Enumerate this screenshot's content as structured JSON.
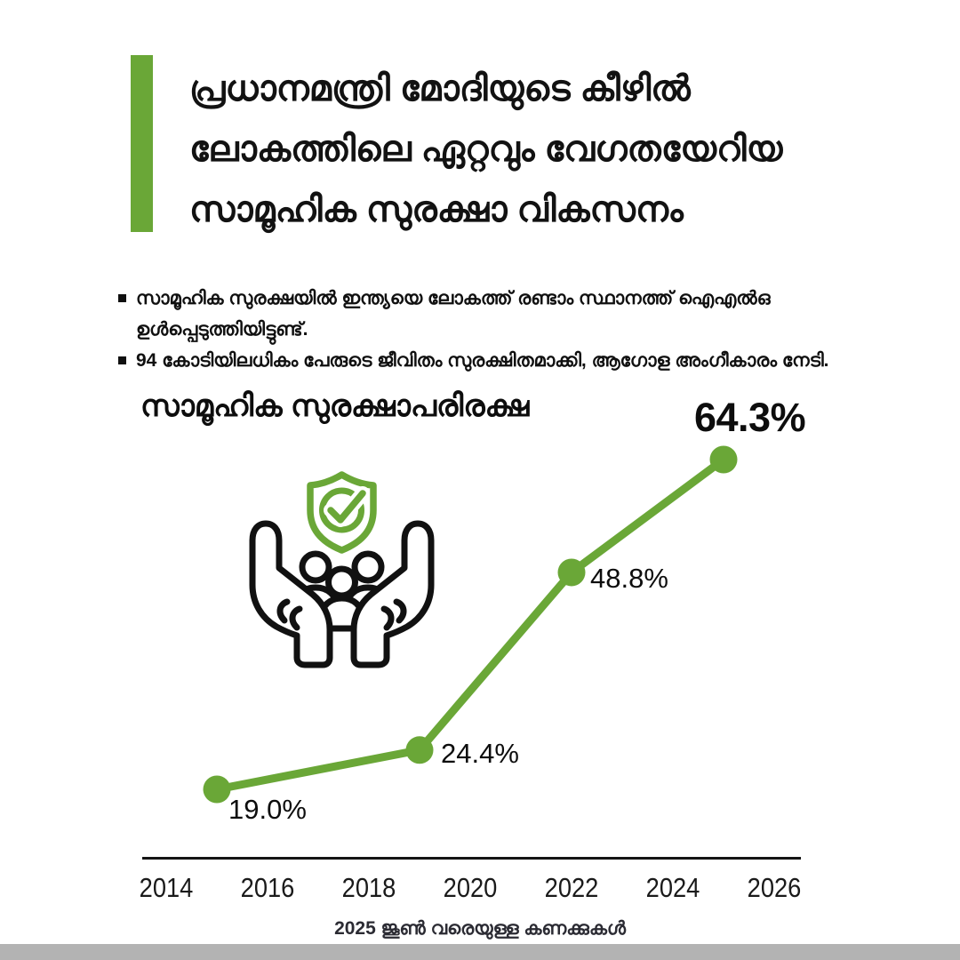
{
  "page": {
    "bg": "#ffffff",
    "accent": "#6aa737",
    "ink": "#111111",
    "bottom_bar_color": "#b3b3b3"
  },
  "header": {
    "title_lines": [
      "പ്രധാനമന്ത്രി മോദിയുടെ കീഴിൽ",
      "ലോകത്തിലെ ഏറ്റവും വേഗതയേറിയ",
      "സാമൂഹിക സുരക്ഷാ വികസനം"
    ]
  },
  "bullets": [
    "സാമൂഹിക സുരക്ഷയിൽ ഇന്ത്യയെ ലോകത്ത് രണ്ടാം സ്ഥാനത്ത് ഐഎൽഒ ഉൾപ്പെടുത്തിയിട്ടുണ്ട്.",
    "94 കോടിയിലധികം പേരുടെ ജീവിതം സുരക്ഷിതമാക്കി, ആഗോള അംഗീകാരം നേടി."
  ],
  "chart_data": {
    "type": "line",
    "title": "സാമൂഹിക സുരക്ഷാപരിരക്ഷ",
    "x": [
      2015,
      2019,
      2022,
      2025
    ],
    "values": [
      19.0,
      24.4,
      48.8,
      64.3
    ],
    "labels": [
      "19.0%",
      "24.4%",
      "48.8%",
      "64.3%"
    ],
    "xticks": [
      2014,
      2016,
      2018,
      2020,
      2022,
      2024,
      2026
    ],
    "ylabel": "",
    "xlabel": "",
    "grid": false,
    "legend": false,
    "line_color": "#6aa737",
    "axis_color": "#141414",
    "label_color": "#0d0d0d"
  },
  "icon": {
    "name": "hands-holding-people-shield-check",
    "shield_color": "#6aa737",
    "figure_color": "#111111"
  },
  "footer": {
    "note": "2025 ജൂൺ വരെയുള്ള കണക്കുകൾ"
  }
}
